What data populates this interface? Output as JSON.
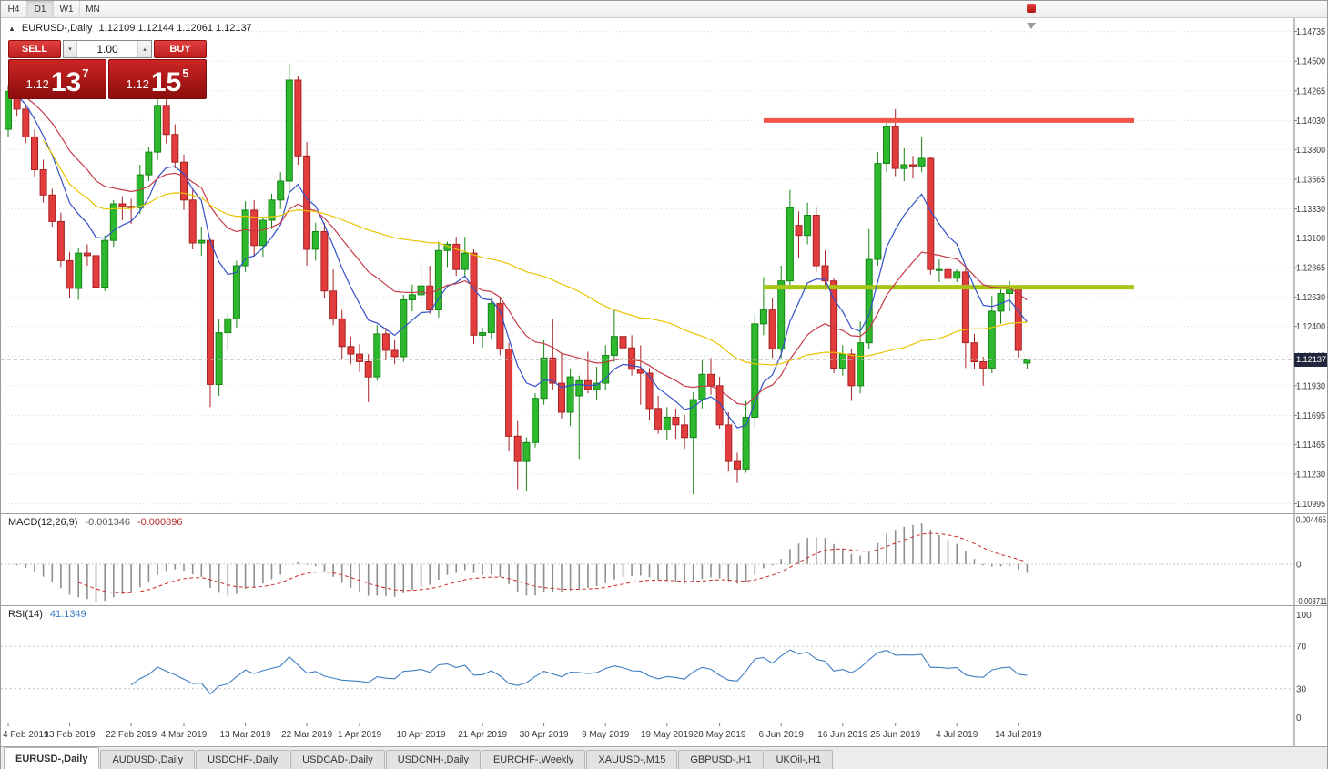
{
  "colors": {
    "candle_up": "#2db82d",
    "candle_up_border": "#158515",
    "candle_down": "#e23c3c",
    "candle_down_border": "#a82222",
    "ma_fast": "#3350c8",
    "ma_mid": "#c43a46",
    "ma_slow": "#e9c400",
    "resistance": "#f1554a",
    "support": "#a8c414",
    "macd_hist": "#8f8f8f",
    "macd_signal": "#cc2929",
    "rsi_line": "#3d7dc2",
    "grid": "#dcdcdc",
    "axis_text": "#3a3a3a",
    "price_line": "#b8b8b8",
    "badge_bg": "#20263c",
    "trade_red": "#d42b2b"
  },
  "toolbar": {
    "timeframes": [
      {
        "label": "H4",
        "active": false
      },
      {
        "label": "D1",
        "active": true
      },
      {
        "label": "W1",
        "active": false
      },
      {
        "label": "MN",
        "active": false
      }
    ]
  },
  "chart_header": {
    "symbol": "EURUSD-,Daily",
    "ohlc": "1.12109 1.12144 1.12061 1.12137"
  },
  "trade_widget": {
    "sell_label": "SELL",
    "buy_label": "BUY",
    "volume": "1.00",
    "sell_price": {
      "prefix": "1.12",
      "big": "13",
      "sup": "7"
    },
    "buy_price": {
      "prefix": "1.12",
      "big": "15",
      "sup": "5"
    }
  },
  "indicators": {
    "macd": {
      "name": "MACD(12,26,9)",
      "value_main": "-0.001346",
      "value_signal": "-0.000896",
      "axis_labels": [
        "0.004465",
        "0",
        "-0.003711"
      ]
    },
    "rsi": {
      "name": "RSI(14)",
      "value": "41.1349",
      "axis_labels": [
        "100",
        "70",
        "30",
        "0"
      ]
    }
  },
  "tabbar": {
    "active_index": 0,
    "tabs": [
      "EURUSD-,Daily",
      "AUDUSD-,Daily",
      "USDCHF-,Daily",
      "USDCAD-,Daily",
      "USDCNH-,Daily",
      "EURCHF-,Weekly",
      "XAUUSD-,M15",
      "GBPUSD-,H1",
      "UKOil-,H1"
    ]
  },
  "chart_data": {
    "type": "candlestick",
    "title": "EURUSD-,Daily",
    "price_ticks": [
      "1.14735",
      "1.14500",
      "1.14265",
      "1.14030",
      "1.13800",
      "1.13565",
      "1.13330",
      "1.13100",
      "1.12865",
      "1.12630",
      "1.12400",
      "1.12165",
      "1.11930",
      "1.11695",
      "1.11465",
      "1.11230",
      "1.10995"
    ],
    "price_range": {
      "min": 1.1092,
      "max": 1.1484
    },
    "date_ticks": [
      {
        "label": "4 Feb 2019",
        "index": 0
      },
      {
        "label": "13 Feb 2019",
        "index": 7
      },
      {
        "label": "22 Feb 2019",
        "index": 14
      },
      {
        "label": "4 Mar 2019",
        "index": 20
      },
      {
        "label": "13 Mar 2019",
        "index": 27
      },
      {
        "label": "22 Mar 2019",
        "index": 34
      },
      {
        "label": "1 Apr 2019",
        "index": 40
      },
      {
        "label": "10 Apr 2019",
        "index": 47
      },
      {
        "label": "21 Apr 2019",
        "index": 54
      },
      {
        "label": "30 Apr 2019",
        "index": 61
      },
      {
        "label": "9 May 2019",
        "index": 68
      },
      {
        "label": "19 May 2019",
        "index": 75
      },
      {
        "label": "28 May 2019",
        "index": 81
      },
      {
        "label": "6 Jun 2019",
        "index": 88
      },
      {
        "label": "16 Jun 2019",
        "index": 95
      },
      {
        "label": "25 Jun 2019",
        "index": 101
      },
      {
        "label": "4 Jul 2019",
        "index": 108
      },
      {
        "label": "14 Jul 2019",
        "index": 115
      }
    ],
    "candles": [
      [
        1.1396,
        1.1431,
        1.139,
        1.1426
      ],
      [
        1.1426,
        1.1434,
        1.1406,
        1.1412
      ],
      [
        1.1412,
        1.1416,
        1.1385,
        1.139
      ],
      [
        1.139,
        1.1396,
        1.1358,
        1.1364
      ],
      [
        1.1364,
        1.1372,
        1.1338,
        1.1344
      ],
      [
        1.1344,
        1.1349,
        1.1319,
        1.1323
      ],
      [
        1.1323,
        1.133,
        1.1287,
        1.1292
      ],
      [
        1.1292,
        1.1299,
        1.1262,
        1.127
      ],
      [
        1.127,
        1.1302,
        1.1261,
        1.1298
      ],
      [
        1.1298,
        1.1305,
        1.1288,
        1.1296
      ],
      [
        1.1296,
        1.1311,
        1.1264,
        1.1271
      ],
      [
        1.1271,
        1.1312,
        1.1268,
        1.1308
      ],
      [
        1.1308,
        1.134,
        1.1303,
        1.1337
      ],
      [
        1.1337,
        1.1343,
        1.1324,
        1.1335
      ],
      [
        1.1335,
        1.1341,
        1.1321,
        1.1334
      ],
      [
        1.1334,
        1.1368,
        1.1329,
        1.136
      ],
      [
        1.136,
        1.1382,
        1.1355,
        1.1378
      ],
      [
        1.1378,
        1.1425,
        1.1372,
        1.1415
      ],
      [
        1.1415,
        1.142,
        1.1385,
        1.1392
      ],
      [
        1.1392,
        1.14,
        1.1365,
        1.137
      ],
      [
        1.137,
        1.1376,
        1.1332,
        1.134
      ],
      [
        1.134,
        1.1348,
        1.1301,
        1.1306
      ],
      [
        1.1306,
        1.1319,
        1.1296,
        1.1308
      ],
      [
        1.1308,
        1.131,
        1.1176,
        1.1194
      ],
      [
        1.1194,
        1.1246,
        1.1185,
        1.1235
      ],
      [
        1.1235,
        1.125,
        1.1221,
        1.1246
      ],
      [
        1.1246,
        1.1292,
        1.1239,
        1.1288
      ],
      [
        1.1288,
        1.1339,
        1.1283,
        1.1332
      ],
      [
        1.1332,
        1.134,
        1.1295,
        1.1304
      ],
      [
        1.1304,
        1.1327,
        1.1295,
        1.1324
      ],
      [
        1.1324,
        1.1345,
        1.1317,
        1.134
      ],
      [
        1.134,
        1.1362,
        1.1333,
        1.1355
      ],
      [
        1.1355,
        1.1448,
        1.1345,
        1.1435
      ],
      [
        1.1435,
        1.1438,
        1.1368,
        1.1375
      ],
      [
        1.1375,
        1.1386,
        1.1288,
        1.1301
      ],
      [
        1.1301,
        1.1322,
        1.1292,
        1.1315
      ],
      [
        1.1315,
        1.1322,
        1.1262,
        1.1268
      ],
      [
        1.1268,
        1.1285,
        1.1241,
        1.1246
      ],
      [
        1.1246,
        1.1253,
        1.1214,
        1.1224
      ],
      [
        1.1224,
        1.1232,
        1.121,
        1.1218
      ],
      [
        1.1218,
        1.1226,
        1.1204,
        1.1212
      ],
      [
        1.1212,
        1.1218,
        1.118,
        1.12
      ],
      [
        1.12,
        1.1241,
        1.1197,
        1.1234
      ],
      [
        1.1234,
        1.1239,
        1.1213,
        1.1221
      ],
      [
        1.1221,
        1.1229,
        1.121,
        1.1216
      ],
      [
        1.1216,
        1.1265,
        1.1212,
        1.1261
      ],
      [
        1.1261,
        1.1273,
        1.1252,
        1.1265
      ],
      [
        1.1265,
        1.129,
        1.1258,
        1.1272
      ],
      [
        1.1272,
        1.1288,
        1.125,
        1.1253
      ],
      [
        1.1253,
        1.1307,
        1.1247,
        1.13
      ],
      [
        1.13,
        1.1307,
        1.1287,
        1.1305
      ],
      [
        1.1305,
        1.1311,
        1.128,
        1.1285
      ],
      [
        1.1285,
        1.1311,
        1.1278,
        1.1298
      ],
      [
        1.1298,
        1.1301,
        1.1226,
        1.1233
      ],
      [
        1.1233,
        1.1239,
        1.1223,
        1.1235
      ],
      [
        1.1235,
        1.1262,
        1.123,
        1.1258
      ],
      [
        1.1258,
        1.1263,
        1.1217,
        1.1222
      ],
      [
        1.1222,
        1.1227,
        1.1141,
        1.1153
      ],
      [
        1.1153,
        1.1165,
        1.1111,
        1.1133
      ],
      [
        1.1133,
        1.1152,
        1.111,
        1.1148
      ],
      [
        1.1148,
        1.1187,
        1.1144,
        1.1183
      ],
      [
        1.1183,
        1.1229,
        1.1178,
        1.1215
      ],
      [
        1.1215,
        1.1246,
        1.119,
        1.1195
      ],
      [
        1.1195,
        1.1219,
        1.1167,
        1.1172
      ],
      [
        1.1172,
        1.1206,
        1.1161,
        1.12
      ],
      [
        1.1185,
        1.1201,
        1.1135,
        1.1197
      ],
      [
        1.1197,
        1.122,
        1.1187,
        1.119
      ],
      [
        1.119,
        1.1208,
        1.1182,
        1.1195
      ],
      [
        1.1195,
        1.1225,
        1.119,
        1.1217
      ],
      [
        1.1217,
        1.1254,
        1.1212,
        1.1232
      ],
      [
        1.1232,
        1.1248,
        1.1221,
        1.1223
      ],
      [
        1.1223,
        1.1233,
        1.1201,
        1.1206
      ],
      [
        1.1206,
        1.1225,
        1.1178,
        1.1203
      ],
      [
        1.1203,
        1.1207,
        1.1166,
        1.1175
      ],
      [
        1.1175,
        1.1185,
        1.1155,
        1.1158
      ],
      [
        1.1158,
        1.1176,
        1.115,
        1.1168
      ],
      [
        1.1168,
        1.1175,
        1.1151,
        1.1162
      ],
      [
        1.1162,
        1.117,
        1.1143,
        1.1152
      ],
      [
        1.1152,
        1.1188,
        1.1107,
        1.1182
      ],
      [
        1.1182,
        1.1213,
        1.1175,
        1.1202
      ],
      [
        1.1202,
        1.1215,
        1.1186,
        1.1193
      ],
      [
        1.1193,
        1.12,
        1.1159,
        1.1162
      ],
      [
        1.1162,
        1.1172,
        1.1125,
        1.1133
      ],
      [
        1.1133,
        1.114,
        1.1116,
        1.1127
      ],
      [
        1.1127,
        1.1181,
        1.1124,
        1.1168
      ],
      [
        1.1168,
        1.125,
        1.116,
        1.1242
      ],
      [
        1.1242,
        1.1279,
        1.1233,
        1.1253
      ],
      [
        1.1253,
        1.1262,
        1.1215,
        1.1222
      ],
      [
        1.1222,
        1.1288,
        1.1215,
        1.1276
      ],
      [
        1.1276,
        1.1348,
        1.1269,
        1.1334
      ],
      [
        1.132,
        1.1331,
        1.1294,
        1.1312
      ],
      [
        1.1312,
        1.1338,
        1.1305,
        1.1328
      ],
      [
        1.1328,
        1.1334,
        1.1283,
        1.1288
      ],
      [
        1.1288,
        1.13,
        1.1269,
        1.1276
      ],
      [
        1.1276,
        1.1278,
        1.1203,
        1.1207
      ],
      [
        1.1207,
        1.1225,
        1.1201,
        1.1218
      ],
      [
        1.1218,
        1.1222,
        1.1181,
        1.1193
      ],
      [
        1.1193,
        1.1244,
        1.1187,
        1.1227
      ],
      [
        1.1227,
        1.1317,
        1.1222,
        1.1293
      ],
      [
        1.1293,
        1.1378,
        1.1288,
        1.1369
      ],
      [
        1.1369,
        1.1405,
        1.1362,
        1.1398
      ],
      [
        1.1398,
        1.1412,
        1.1359,
        1.1365
      ],
      [
        1.1365,
        1.1381,
        1.1355,
        1.1368
      ],
      [
        1.1368,
        1.1375,
        1.1357,
        1.1367
      ],
      [
        1.1367,
        1.139,
        1.1362,
        1.1373
      ],
      [
        1.1373,
        1.1374,
        1.1281,
        1.1285
      ],
      [
        1.1285,
        1.1293,
        1.1275,
        1.1285
      ],
      [
        1.1285,
        1.129,
        1.1268,
        1.1278
      ],
      [
        1.1278,
        1.1285,
        1.1275,
        1.1283
      ],
      [
        1.1283,
        1.1287,
        1.1207,
        1.1227
      ],
      [
        1.1227,
        1.1234,
        1.1206,
        1.1212
      ],
      [
        1.1212,
        1.1216,
        1.1193,
        1.1207
      ],
      [
        1.1207,
        1.1264,
        1.1203,
        1.1252
      ],
      [
        1.1252,
        1.127,
        1.1242,
        1.1266
      ],
      [
        1.1266,
        1.1276,
        1.1252,
        1.1271
      ],
      [
        1.1271,
        1.1273,
        1.1215,
        1.1221
      ],
      [
        1.12109,
        1.12144,
        1.12061,
        1.12137
      ]
    ],
    "overlays": {
      "ma_fast": {
        "type": "ema",
        "period": 8
      },
      "ma_mid": {
        "type": "ema",
        "period": 20
      },
      "ma_slow": {
        "type": "sma",
        "period": 50
      },
      "resistance_line": {
        "price": 1.1403,
        "from_index": 86
      },
      "support_line": {
        "price": 1.1271,
        "from_index": 86
      },
      "current_price": {
        "value": "1.12137",
        "price": 1.12137
      }
    },
    "macd": {
      "fast": 12,
      "slow": 26,
      "signal": 9,
      "range_min": -0.0041,
      "range_max": 0.005
    },
    "rsi": {
      "period": 14,
      "levels": [
        70,
        30
      ],
      "range_min": -2,
      "range_max": 108
    }
  }
}
